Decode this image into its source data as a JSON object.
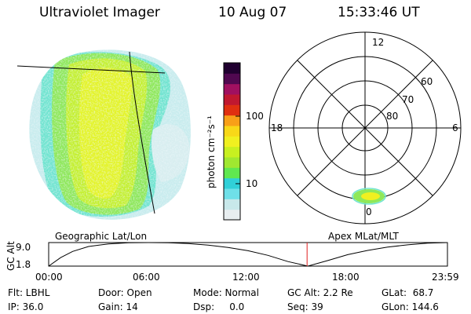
{
  "header": {
    "instrument": "Ultraviolet Imager",
    "date": "10 Aug 07",
    "time": "15:33:46 UT"
  },
  "geo_panel": {
    "label": "Geographic Lat/Lon"
  },
  "colorbar": {
    "unit_label": "photon cm⁻²s⁻¹",
    "ticks": [
      "100",
      "10"
    ],
    "colors": [
      "#e8eef0",
      "#c8e8ea",
      "#6fe0e8",
      "#30d0d8",
      "#60e850",
      "#a0e830",
      "#c8f020",
      "#f0f020",
      "#f8d818",
      "#f8a018",
      "#e03010",
      "#c01830",
      "#a01060",
      "#500850",
      "#200030"
    ]
  },
  "polar_panel": {
    "label": "Apex MLat/MLT",
    "mlt_labels": [
      "12",
      "18",
      "6",
      "0"
    ],
    "mlat_labels": [
      "60",
      "70",
      "80"
    ]
  },
  "timeline": {
    "y_label": "GC Alt",
    "y_ticks": [
      "9.0",
      "1.8"
    ],
    "x_ticks": [
      "00:00",
      "06:00",
      "12:00",
      "18:00",
      "23:59"
    ],
    "current_fraction": 0.648,
    "altitude_profile": [
      [
        0.0,
        1.8
      ],
      [
        0.03,
        4.4
      ],
      [
        0.06,
        6.3
      ],
      [
        0.1,
        7.8
      ],
      [
        0.15,
        8.6
      ],
      [
        0.2,
        8.95
      ],
      [
        0.25,
        9.0
      ],
      [
        0.3,
        8.95
      ],
      [
        0.35,
        8.7
      ],
      [
        0.4,
        8.2
      ],
      [
        0.45,
        7.5
      ],
      [
        0.5,
        6.5
      ],
      [
        0.55,
        5.1
      ],
      [
        0.6,
        3.2
      ],
      [
        0.65,
        1.8
      ],
      [
        0.7,
        3.5
      ],
      [
        0.75,
        5.3
      ],
      [
        0.8,
        6.6
      ],
      [
        0.85,
        7.6
      ],
      [
        0.9,
        8.3
      ],
      [
        0.95,
        8.8
      ],
      [
        1.0,
        9.0
      ]
    ]
  },
  "info": {
    "filter": "Flt: LBHL",
    "ip": "IP: 36.0",
    "door": "Door: Open",
    "gain": "Gain: 14",
    "mode": "Mode: Normal",
    "dsp": "Dsp:     0.0",
    "gc_alt": "GC Alt: 2.2 Re",
    "seq": "Seq: 39",
    "glat": "GLat:  68.7",
    "glon": "GLon: 144.6"
  }
}
